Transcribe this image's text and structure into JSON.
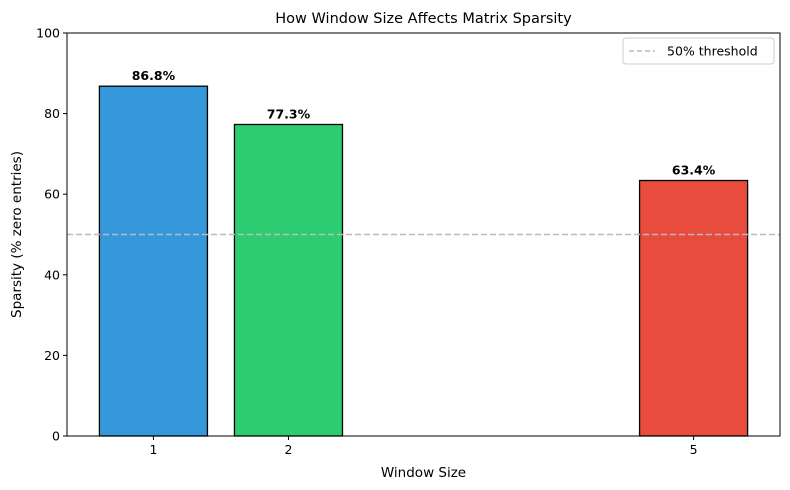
{
  "chart_data": {
    "type": "bar",
    "title": "How Window Size Affects Matrix Sparsity",
    "xlabel": "Window Size",
    "ylabel": "Sparsity (% zero entries)",
    "x": [
      1,
      2,
      5
    ],
    "x_tick_labels": [
      "1",
      "2",
      "5"
    ],
    "values": [
      86.8,
      77.3,
      63.4
    ],
    "data_labels": [
      "86.8%",
      "77.3%",
      "63.4%"
    ],
    "colors": [
      "#3498db",
      "#2ecc71",
      "#e74c3c"
    ],
    "bar_width": 0.8,
    "xlim": [
      0.36,
      5.64
    ],
    "ylim": [
      0,
      100
    ],
    "y_ticks": [
      0,
      20,
      40,
      60,
      80,
      100
    ],
    "y_tick_labels": [
      "0",
      "20",
      "40",
      "60",
      "80",
      "100"
    ],
    "grid": false,
    "reference_line": {
      "y": 50,
      "label": "50% threshold",
      "color": "#bbbbbb",
      "style": "dashed"
    },
    "legend": {
      "placement": "top-right",
      "entries": [
        "50% threshold"
      ]
    }
  }
}
